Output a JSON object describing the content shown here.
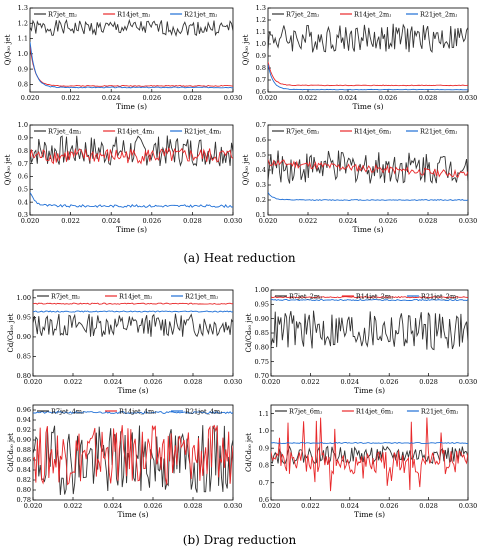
{
  "captions": {
    "heat_label": "(a)",
    "heat_text": "Heat reduction",
    "drag_label": "(b)",
    "drag_text": "Drag reduction"
  },
  "colors": {
    "R7": "#333333",
    "R14": "#e8282a",
    "R21": "#1f6fd6"
  },
  "chart_data": [
    {
      "type": "line",
      "group": "heat",
      "xlabel": "Time (s)",
      "ylabel": "Q/Q₀₀ jet",
      "xlim": [
        0.02,
        0.03
      ],
      "ylim": [
        0.75,
        1.3
      ],
      "xticks": [
        "0.020",
        "0.022",
        "0.024",
        "0.026",
        "0.028",
        "0.030"
      ],
      "yticks": [
        "0.8",
        "0.9",
        "1.0",
        "1.1",
        "1.2",
        "1.3"
      ],
      "legend": "top",
      "series": [
        {
          "name": "R7jet_mⱼ",
          "color_key": "R7",
          "kind": "noise",
          "base": 1.17,
          "amp": 0.05,
          "seed": 1
        },
        {
          "name": "R14jet_mⱼ",
          "color_key": "R14",
          "kind": "decay",
          "start": 1.05,
          "end": 0.79,
          "amp": 0.003,
          "seed": 2
        },
        {
          "name": "R21jet_mⱼ",
          "color_key": "R21",
          "kind": "decay",
          "start": 1.08,
          "end": 0.78,
          "amp": 0.003,
          "seed": 3
        }
      ]
    },
    {
      "type": "line",
      "group": "heat",
      "xlabel": "Time (s)",
      "ylabel": "Q/Q₀₀ jet",
      "xlim": [
        0.02,
        0.03
      ],
      "ylim": [
        0.6,
        1.3
      ],
      "xticks": [
        "0.020",
        "0.022",
        "0.024",
        "0.026",
        "0.028",
        "0.030"
      ],
      "yticks": [
        "0.6",
        "0.7",
        "0.8",
        "0.9",
        "1.0",
        "1.1",
        "1.2",
        "1.3"
      ],
      "legend": "top",
      "series": [
        {
          "name": "R7jet_2mⱼ",
          "color_key": "R7",
          "kind": "noise",
          "base": 1.05,
          "amp": 0.12,
          "seed": 4
        },
        {
          "name": "R14jet_2mⱼ",
          "color_key": "R14",
          "kind": "decay",
          "start": 0.85,
          "end": 0.655,
          "amp": 0.003,
          "seed": 5
        },
        {
          "name": "R21jet_2mⱼ",
          "color_key": "R21",
          "kind": "decay",
          "start": 0.83,
          "end": 0.62,
          "amp": 0.002,
          "seed": 6
        }
      ]
    },
    {
      "type": "line",
      "group": "heat",
      "xlabel": "Time (s)",
      "ylabel": "Q/Q₀₀ jet",
      "xlim": [
        0.02,
        0.03
      ],
      "ylim": [
        0.3,
        1.0
      ],
      "xticks": [
        "0.020",
        "0.022",
        "0.024",
        "0.026",
        "0.028",
        "0.030"
      ],
      "yticks": [
        "0.3",
        "0.4",
        "0.5",
        "0.6",
        "0.7",
        "0.8",
        "0.9",
        "1.0"
      ],
      "legend": "top",
      "series": [
        {
          "name": "R7jet_4mⱼ",
          "color_key": "R7",
          "kind": "noise",
          "base": 0.8,
          "amp": 0.12,
          "seed": 7
        },
        {
          "name": "R14jet_4mⱼ",
          "color_key": "R14",
          "kind": "noise",
          "base": 0.76,
          "amp": 0.06,
          "seed": 8
        },
        {
          "name": "R21jet_4mⱼ",
          "color_key": "R21",
          "kind": "decay",
          "start": 0.48,
          "end": 0.37,
          "amp": 0.01,
          "seed": 9
        }
      ]
    },
    {
      "type": "line",
      "group": "heat",
      "xlabel": "Time (s)",
      "ylabel": "Q/Q₀₀ jet",
      "xlim": [
        0.02,
        0.03
      ],
      "ylim": [
        0.1,
        0.7
      ],
      "xticks": [
        "0.020",
        "0.022",
        "0.024",
        "0.026",
        "0.028",
        "0.030"
      ],
      "yticks": [
        "0.1",
        "0.2",
        "0.3",
        "0.4",
        "0.5",
        "0.6",
        "0.7"
      ],
      "legend": "top",
      "series": [
        {
          "name": "R7jet_6mⱼ",
          "color_key": "R7",
          "kind": "noise",
          "base": 0.42,
          "amp": 0.11,
          "seed": 10
        },
        {
          "name": "R14jet_6mⱼ",
          "color_key": "R14",
          "kind": "trend",
          "start": 0.45,
          "end": 0.37,
          "amp": 0.025,
          "seed": 11
        },
        {
          "name": "R21jet_6mⱼ",
          "color_key": "R21",
          "kind": "decay",
          "start": 0.25,
          "end": 0.2,
          "amp": 0.003,
          "seed": 12
        }
      ]
    },
    {
      "type": "line",
      "group": "drag",
      "xlabel": "Time (s)",
      "ylabel": "Cd/Cd₀₀ jet",
      "xlim": [
        0.02,
        0.03
      ],
      "ylim": [
        0.8,
        1.02
      ],
      "xticks": [
        "0.020",
        "0.022",
        "0.024",
        "0.026",
        "0.028",
        "0.030"
      ],
      "yticks": [
        "0.80",
        "0.85",
        "0.90",
        "0.95",
        "1.00"
      ],
      "legend": "top",
      "series": [
        {
          "name": "R7jet_mⱼ",
          "color_key": "R7",
          "kind": "noise",
          "base": 0.93,
          "amp": 0.03,
          "seed": 13
        },
        {
          "name": "R14jet_mⱼ",
          "color_key": "R14",
          "kind": "flat",
          "base": 0.985,
          "amp": 0.0015,
          "seed": 14
        },
        {
          "name": "R21jet_mⱼ",
          "color_key": "R21",
          "kind": "flat",
          "base": 0.965,
          "amp": 0.0015,
          "seed": 15
        }
      ]
    },
    {
      "type": "line",
      "group": "drag",
      "xlabel": "Time (s)",
      "ylabel": "Cd/Cd₀₀ jet",
      "xlim": [
        0.02,
        0.03
      ],
      "ylim": [
        0.7,
        1.0
      ],
      "xticks": [
        "0.020",
        "0.022",
        "0.024",
        "0.026",
        "0.028",
        "0.030"
      ],
      "yticks": [
        "0.70",
        "0.75",
        "0.80",
        "0.85",
        "0.90",
        "0.95",
        "1.00"
      ],
      "legend": "top",
      "series": [
        {
          "name": "R7jet_2mⱼ",
          "color_key": "R7",
          "kind": "noise",
          "base": 0.86,
          "amp": 0.07,
          "seed": 16
        },
        {
          "name": "R14jet_2mⱼ",
          "color_key": "R14",
          "kind": "flat",
          "base": 0.975,
          "amp": 0.002,
          "seed": 17
        },
        {
          "name": "R21jet_2mⱼ",
          "color_key": "R21",
          "kind": "flat",
          "base": 0.965,
          "amp": 0.002,
          "seed": 18
        }
      ]
    },
    {
      "type": "line",
      "group": "drag",
      "xlabel": "Time (s)",
      "ylabel": "Cd/Cd₀₀ jet",
      "xlim": [
        0.02,
        0.03
      ],
      "ylim": [
        0.78,
        0.97
      ],
      "xticks": [
        "0.020",
        "0.022",
        "0.024",
        "0.026",
        "0.028",
        "0.030"
      ],
      "yticks": [
        "0.78",
        "0.80",
        "0.82",
        "0.84",
        "0.86",
        "0.88",
        "0.90",
        "0.92",
        "0.94",
        "0.96"
      ],
      "legend": "top",
      "series": [
        {
          "name": "R7jet_4mⱼ",
          "color_key": "R7",
          "kind": "noise",
          "base": 0.86,
          "amp": 0.07,
          "seed": 19
        },
        {
          "name": "R14jet_4mⱼ",
          "color_key": "R14",
          "kind": "noise",
          "base": 0.87,
          "amp": 0.06,
          "seed": 20
        },
        {
          "name": "R21jet_4mⱼ",
          "color_key": "R21",
          "kind": "flat",
          "base": 0.955,
          "amp": 0.002,
          "seed": 21
        }
      ]
    },
    {
      "type": "line",
      "group": "drag",
      "xlabel": "Time (s)",
      "ylabel": "Cd/Cd₀₀ jet",
      "xlim": [
        0.02,
        0.03
      ],
      "ylim": [
        0.6,
        1.15
      ],
      "xticks": [
        "0.020",
        "0.022",
        "0.024",
        "0.026",
        "0.028",
        "0.030"
      ],
      "yticks": [
        "0.6",
        "0.7",
        "0.8",
        "0.9",
        "1.0",
        "1.1"
      ],
      "legend": "top",
      "series": [
        {
          "name": "R7jet_6mⱼ",
          "color_key": "R7",
          "kind": "noise",
          "base": 0.86,
          "amp": 0.05,
          "seed": 22
        },
        {
          "name": "R14jet_6mⱼ",
          "color_key": "R14",
          "kind": "spiky",
          "base": 0.82,
          "amp": 0.1,
          "seed": 23
        },
        {
          "name": "R21jet_6mⱼ",
          "color_key": "R21",
          "kind": "flat",
          "base": 0.93,
          "amp": 0.003,
          "seed": 24
        }
      ]
    }
  ]
}
